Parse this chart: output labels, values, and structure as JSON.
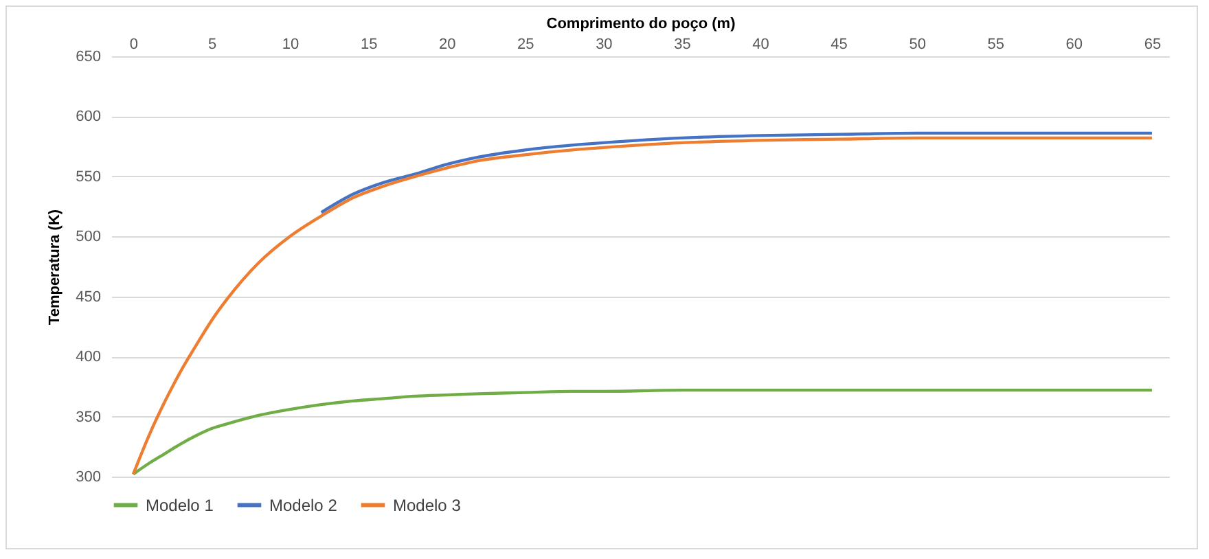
{
  "chart_data": {
    "type": "line",
    "xlabel": "Comprimento do poço (m)",
    "ylabel": "Temperatura  (K)",
    "x": [
      0,
      1,
      2,
      3,
      4,
      5,
      6,
      8,
      10,
      12,
      14,
      16,
      18,
      20,
      22,
      25,
      28,
      30,
      35,
      40,
      45,
      50,
      55,
      60,
      65
    ],
    "series": [
      {
        "name": "Modelo 1",
        "color": "#70ad47",
        "values": [
          302,
          311,
          319,
          327,
          334,
          340,
          344,
          351,
          356,
          360,
          363,
          365,
          367,
          368,
          369,
          370,
          371,
          371,
          372,
          372,
          372,
          372,
          372,
          372,
          372
        ]
      },
      {
        "name": "Modelo 2",
        "color": "#4472c4",
        "values": [
          null,
          null,
          null,
          null,
          null,
          null,
          null,
          null,
          null,
          520,
          535,
          545,
          552,
          560,
          566,
          572,
          576,
          578,
          582,
          584,
          585,
          586,
          586,
          586,
          586
        ]
      },
      {
        "name": "Modelo 3",
        "color": "#ed7d31",
        "values": [
          302,
          334,
          362,
          387,
          409,
          430,
          448,
          478,
          500,
          517,
          532,
          542,
          550,
          557,
          563,
          568,
          572,
          574,
          578,
          580,
          581,
          582,
          582,
          582,
          582
        ]
      }
    ],
    "xlim": [
      -1.4,
      66.1
    ],
    "xticks": [
      0,
      5,
      10,
      15,
      20,
      25,
      30,
      35,
      40,
      45,
      50,
      55,
      60,
      65
    ],
    "ylim": [
      300,
      650
    ],
    "yticks": [
      300,
      350,
      400,
      450,
      500,
      550,
      600,
      650
    ],
    "grid": "y",
    "legend": "bottom",
    "marker": "none",
    "line_style": "solid"
  }
}
